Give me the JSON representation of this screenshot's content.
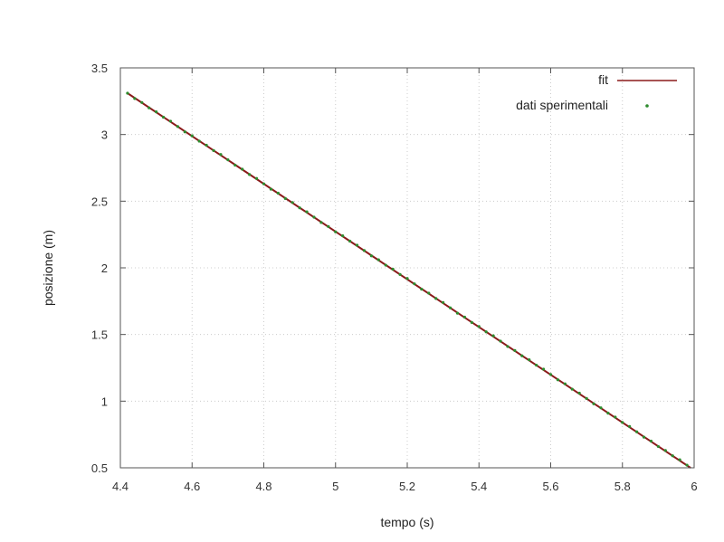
{
  "chart_data": {
    "type": "line",
    "xlabel": "tempo (s)",
    "ylabel": "posizione (m)",
    "xlim": [
      4.4,
      6.0
    ],
    "ylim": [
      0.5,
      3.5
    ],
    "x_ticks": [
      4.4,
      4.6,
      4.8,
      5.0,
      5.2,
      5.4,
      5.6,
      5.8,
      6.0
    ],
    "x_tick_labels": [
      "4.4",
      "4.6",
      "4.8",
      "5",
      "5.2",
      "5.4",
      "5.6",
      "5.8",
      "6"
    ],
    "y_ticks": [
      0.5,
      1.0,
      1.5,
      2.0,
      2.5,
      3.0,
      3.5
    ],
    "y_tick_labels": [
      "0.5",
      "1",
      "1.5",
      "2",
      "2.5",
      "3",
      "3.5"
    ],
    "grid": true,
    "legend_position": "top-right",
    "series": [
      {
        "name": "fit",
        "kind": "line",
        "color": "#8b1a1a",
        "x": [
          4.42,
          5.99
        ],
        "y": [
          3.31,
          0.5
        ]
      },
      {
        "name": "dati sperimentali",
        "kind": "scatter",
        "color": "#2e8b2e",
        "x": [
          4.42,
          4.44,
          4.46,
          4.48,
          4.5,
          4.52,
          4.54,
          4.56,
          4.58,
          4.6,
          4.62,
          4.64,
          4.66,
          4.68,
          4.7,
          4.72,
          4.74,
          4.76,
          4.78,
          4.8,
          4.82,
          4.84,
          4.86,
          4.88,
          4.9,
          4.92,
          4.94,
          4.96,
          4.98,
          5.0,
          5.02,
          5.04,
          5.06,
          5.08,
          5.1,
          5.12,
          5.14,
          5.16,
          5.18,
          5.2,
          5.22,
          5.24,
          5.26,
          5.28,
          5.3,
          5.32,
          5.34,
          5.36,
          5.38,
          5.4,
          5.42,
          5.44,
          5.46,
          5.48,
          5.5,
          5.52,
          5.54,
          5.56,
          5.58,
          5.6,
          5.62,
          5.64,
          5.66,
          5.68,
          5.7,
          5.72,
          5.74,
          5.76,
          5.78,
          5.8,
          5.82,
          5.84,
          5.86,
          5.88,
          5.9,
          5.92,
          5.94,
          5.96,
          5.98
        ],
        "y": [
          3.31,
          3.27,
          3.24,
          3.2,
          3.17,
          3.13,
          3.1,
          3.06,
          3.02,
          2.99,
          2.95,
          2.92,
          2.88,
          2.85,
          2.81,
          2.77,
          2.74,
          2.7,
          2.67,
          2.63,
          2.59,
          2.56,
          2.52,
          2.49,
          2.45,
          2.42,
          2.38,
          2.34,
          2.31,
          2.27,
          2.24,
          2.2,
          2.17,
          2.13,
          2.09,
          2.06,
          2.02,
          1.99,
          1.95,
          1.92,
          1.88,
          1.84,
          1.81,
          1.77,
          1.74,
          1.7,
          1.66,
          1.63,
          1.59,
          1.56,
          1.52,
          1.49,
          1.45,
          1.41,
          1.38,
          1.34,
          1.31,
          1.27,
          1.24,
          1.2,
          1.16,
          1.13,
          1.09,
          1.06,
          1.02,
          0.98,
          0.95,
          0.91,
          0.88,
          0.84,
          0.81,
          0.77,
          0.73,
          0.7,
          0.66,
          0.63,
          0.59,
          0.56,
          0.52
        ]
      }
    ]
  }
}
